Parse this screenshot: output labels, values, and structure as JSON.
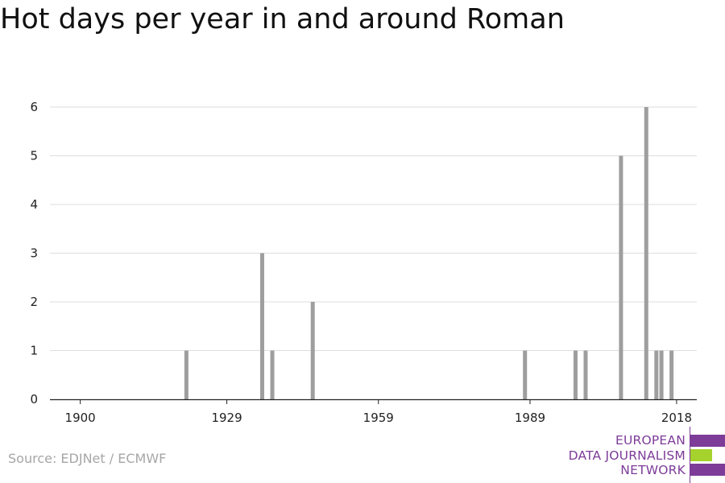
{
  "title": "Hot days per year in and around Roman",
  "source": "Source: EDJNet / ECMWF",
  "logo": {
    "line1": "EUROPEAN",
    "line2": "DATA JOURNALISM",
    "line3": "NETWORK",
    "colors": {
      "purple": "#7d3c98",
      "green": "#a6d22d"
    }
  },
  "chart_data": {
    "type": "bar",
    "title": "Hot days per year in and around Roman",
    "xlabel": "",
    "ylabel": "",
    "x_ticks": [
      1900,
      1929,
      1959,
      1989,
      2018
    ],
    "y_ticks": [
      0,
      1,
      2,
      3,
      4,
      5,
      6
    ],
    "xlim": [
      1894,
      2022
    ],
    "ylim": [
      0,
      6
    ],
    "grid": true,
    "bar_color": "#9e9e9e",
    "categories": [
      1921,
      1936,
      1938,
      1946,
      1988,
      1998,
      2000,
      2007,
      2012,
      2014,
      2015,
      2017
    ],
    "values": [
      1,
      3,
      1,
      2,
      1,
      1,
      1,
      5,
      6,
      1,
      1,
      1
    ]
  }
}
